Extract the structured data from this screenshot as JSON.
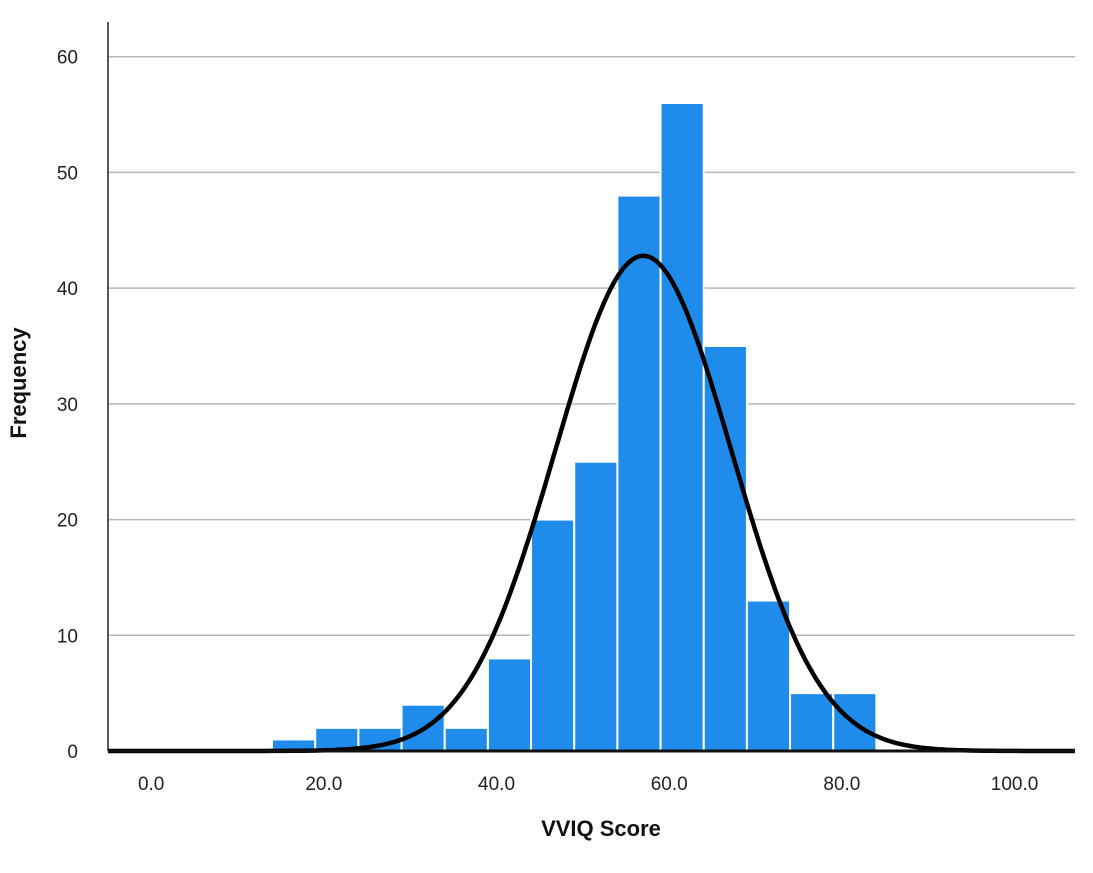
{
  "chart_data": {
    "type": "bar",
    "subtype": "histogram with fitted normal curve",
    "xlabel": "VVIQ Score",
    "ylabel": "Frequency",
    "xlim": [
      -5,
      107
    ],
    "ylim": [
      0,
      63
    ],
    "x_ticks": [
      0,
      20,
      40,
      60,
      80,
      100
    ],
    "x_tick_labels": [
      "0.0",
      "20.0",
      "40.0",
      "60.0",
      "80.0",
      "100.0"
    ],
    "y_ticks": [
      0,
      10,
      20,
      30,
      40,
      50,
      60
    ],
    "y_tick_labels": [
      "0",
      "10",
      "20",
      "30",
      "40",
      "50",
      "60"
    ],
    "grid": "horizontal",
    "bin_width": 5,
    "bins": [
      {
        "start": 14,
        "end": 19,
        "count": 1
      },
      {
        "start": 19,
        "end": 24,
        "count": 2
      },
      {
        "start": 24,
        "end": 29,
        "count": 2
      },
      {
        "start": 29,
        "end": 34,
        "count": 4
      },
      {
        "start": 34,
        "end": 39,
        "count": 2
      },
      {
        "start": 39,
        "end": 44,
        "count": 8
      },
      {
        "start": 44,
        "end": 49,
        "count": 20
      },
      {
        "start": 49,
        "end": 54,
        "count": 25
      },
      {
        "start": 54,
        "end": 59,
        "count": 48
      },
      {
        "start": 59,
        "end": 64,
        "count": 56
      },
      {
        "start": 64,
        "end": 69,
        "count": 35
      },
      {
        "start": 69,
        "end": 74,
        "count": 13
      },
      {
        "start": 74,
        "end": 79,
        "count": 5
      },
      {
        "start": 79,
        "end": 84,
        "count": 5
      }
    ],
    "normal_curve": {
      "mean": 57,
      "sd": 10.2,
      "peak": 42.8
    },
    "colors": {
      "bar": "#1f8ceb",
      "curve": "#000000",
      "grid": "#b8b8b8"
    }
  }
}
